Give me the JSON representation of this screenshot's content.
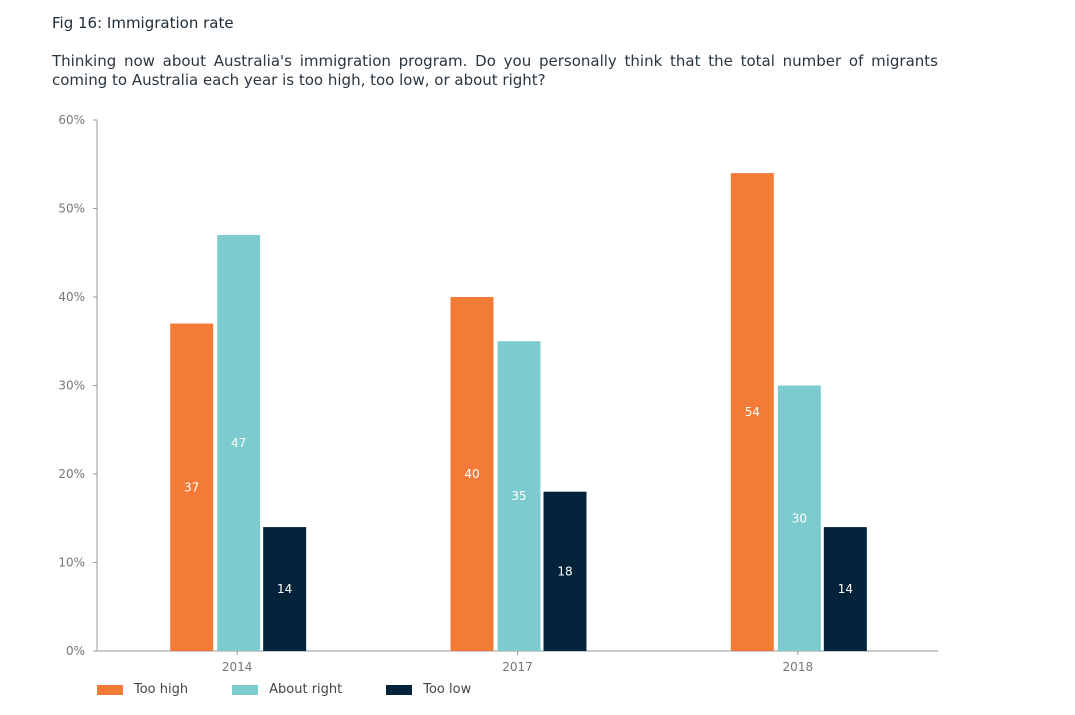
{
  "chart_data": {
    "type": "bar",
    "title": "Fig 16: Immigration rate",
    "subtitle": "Thinking now about Australia's immigration program. Do you personally think that the total number of migrants coming to Australia each year is too high, too low, or about right?",
    "categories": [
      "2014",
      "2017",
      "2018"
    ],
    "series": [
      {
        "name": "Too high",
        "color": "#f47a38",
        "values": [
          37,
          40,
          54
        ]
      },
      {
        "name": "About right",
        "color": "#7ccccf",
        "values": [
          47,
          35,
          30
        ]
      },
      {
        "name": "Too low",
        "color": "#03233b",
        "values": [
          14,
          18,
          14
        ]
      }
    ],
    "ylim": [
      0,
      60
    ],
    "yticks": [
      "0%",
      "10%",
      "20%",
      "30%",
      "40%",
      "50%",
      "60%"
    ],
    "xlabel": "",
    "ylabel": "",
    "grid": false,
    "legend": "bottom-left"
  }
}
